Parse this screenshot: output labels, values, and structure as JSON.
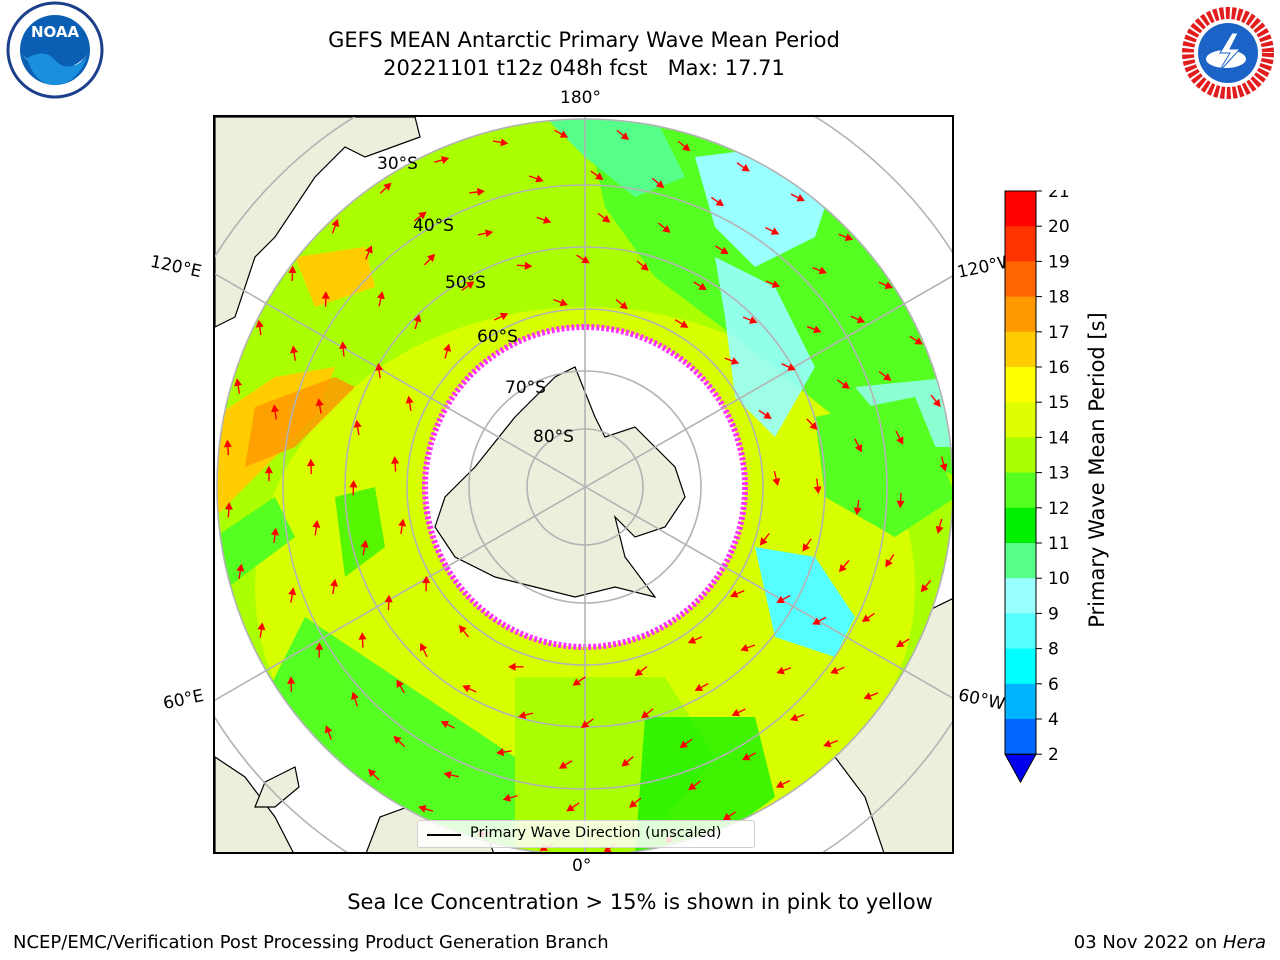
{
  "header": {
    "title_line1": "GEFS MEAN Antarctic Primary Wave Mean Period",
    "title_line2": "20221101 t12z 048h fcst   Max: 17.71"
  },
  "map": {
    "projection": "south polar stereographic",
    "meridian_labels": {
      "top": "180°",
      "bottom": "0°",
      "left_upper": "120°E",
      "left_lower": "60°E",
      "right_upper": "120°W",
      "right_lower": "60°W"
    },
    "latitude_labels": [
      "30°S",
      "40°S",
      "50°S",
      "60°S",
      "70°S",
      "80°S"
    ],
    "legend": "Primary Wave Direction (unscaled)",
    "arrow_color": "#ff0000",
    "sea_ice_color": "#ff33ff",
    "land_color": "#eeeedd"
  },
  "colorbar": {
    "label": "Primary Wave Mean Period [s]",
    "ticks": [
      "2",
      "4",
      "6",
      "8",
      "9",
      "10",
      "11",
      "12",
      "13",
      "14",
      "15",
      "16",
      "17",
      "18",
      "19",
      "20",
      "21"
    ],
    "colors": [
      "#0066ff",
      "#00b3ff",
      "#00ffff",
      "#55ffff",
      "#99ffff",
      "#55ff88",
      "#00ee00",
      "#55ff22",
      "#aaff00",
      "#ddff00",
      "#ffff00",
      "#ffcc00",
      "#ff9900",
      "#ff6600",
      "#ff3300",
      "#ff0000"
    ],
    "extend": "min"
  },
  "subtitle": "Sea Ice Concentration > 15% is shown in pink to yellow",
  "footer": {
    "left": "NCEP/EMC/Verification Post Processing Product Generation Branch",
    "date": "03 Nov 2022 on ",
    "host": "Hera"
  },
  "logos": {
    "noaa_text": "NOAA",
    "nws_text": "NATIONAL WEATHER SERVICE"
  }
}
